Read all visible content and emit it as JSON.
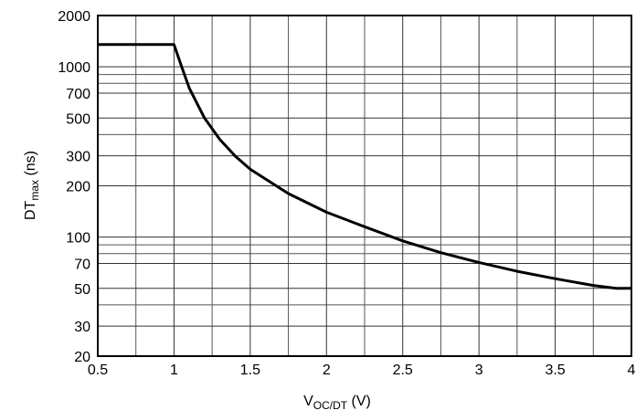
{
  "chart_data": {
    "type": "line",
    "xlabel": {
      "main": "V",
      "sub": "OC/DT",
      "unit": " (V)"
    },
    "ylabel": {
      "main": "DT",
      "sub": "max",
      "unit": " (ns)"
    },
    "xlim": [
      0.5,
      4
    ],
    "ylim": [
      20,
      2000
    ],
    "yscale": "log",
    "grid": true,
    "x_ticks": [
      {
        "value": 0.5,
        "label": "0.5"
      },
      {
        "value": 1,
        "label": "1"
      },
      {
        "value": 1.5,
        "label": "1.5"
      },
      {
        "value": 2,
        "label": "2"
      },
      {
        "value": 2.5,
        "label": "2.5"
      },
      {
        "value": 3,
        "label": "3"
      },
      {
        "value": 3.5,
        "label": "3.5"
      },
      {
        "value": 4,
        "label": "4"
      }
    ],
    "y_ticks": [
      {
        "value": 20,
        "label": "20"
      },
      {
        "value": 30,
        "label": "30"
      },
      {
        "value": 50,
        "label": "50"
      },
      {
        "value": 70,
        "label": "70"
      },
      {
        "value": 100,
        "label": "100"
      },
      {
        "value": 200,
        "label": "200"
      },
      {
        "value": 300,
        "label": "300"
      },
      {
        "value": 500,
        "label": "500"
      },
      {
        "value": 700,
        "label": "700"
      },
      {
        "value": 1000,
        "label": "1000"
      },
      {
        "value": 2000,
        "label": "2000"
      }
    ],
    "x_minor_grid": [
      0.75,
      1.25,
      1.75,
      2.25,
      2.75,
      3.25,
      3.75
    ],
    "y_minor_grid": [
      40,
      80,
      90,
      400,
      800,
      900
    ],
    "series": [
      {
        "color": "#000000",
        "x": [
          0.5,
          1.0,
          1.05,
          1.1,
          1.2,
          1.3,
          1.4,
          1.5,
          1.75,
          2.0,
          2.25,
          2.5,
          2.75,
          3.0,
          3.25,
          3.5,
          3.75,
          3.9,
          4.0
        ],
        "y": [
          1350,
          1350,
          1000,
          750,
          500,
          375,
          300,
          250,
          180,
          140,
          115,
          95,
          81,
          71,
          63,
          57,
          52,
          50,
          50
        ]
      }
    ]
  }
}
